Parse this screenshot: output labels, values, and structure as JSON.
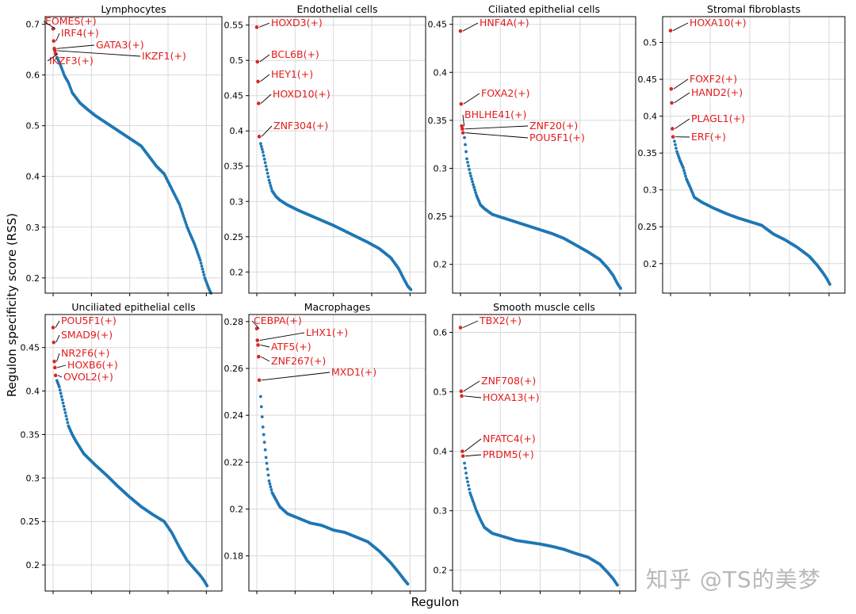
{
  "figure": {
    "xlabel": "Regulon",
    "ylabel": "Regulon specificity score (RSS)",
    "watermark": "知乎 @TS的美梦"
  },
  "colors": {
    "highlight": "#d62728",
    "points": "#1f77b4",
    "label": "#e41a1c",
    "grid": "#d9d9d9"
  },
  "chart_data": [
    {
      "type": "scatter",
      "title": "Lymphocytes",
      "ylim": [
        0.17,
        0.715
      ],
      "yticks": [
        0.2,
        0.3,
        0.4,
        0.5,
        0.6,
        0.7
      ],
      "highlights": [
        {
          "label": "EOMES(+)",
          "value": 0.691
        },
        {
          "label": "IRF4(+)",
          "value": 0.667
        },
        {
          "label": "GATA3(+)",
          "value": 0.652
        },
        {
          "label": "IKZF1(+)",
          "value": 0.648
        },
        {
          "label": "IKZF3(+)",
          "value": 0.642
        }
      ],
      "curve": [
        [
          5,
          0.635
        ],
        [
          10,
          0.618
        ],
        [
          15,
          0.598
        ],
        [
          20,
          0.585
        ],
        [
          25,
          0.565
        ],
        [
          30,
          0.555
        ],
        [
          35,
          0.545
        ],
        [
          45,
          0.532
        ],
        [
          55,
          0.52
        ],
        [
          70,
          0.505
        ],
        [
          85,
          0.49
        ],
        [
          100,
          0.475
        ],
        [
          115,
          0.46
        ],
        [
          125,
          0.44
        ],
        [
          135,
          0.42
        ],
        [
          145,
          0.405
        ],
        [
          155,
          0.375
        ],
        [
          165,
          0.345
        ],
        [
          175,
          0.3
        ],
        [
          185,
          0.265
        ],
        [
          192,
          0.235
        ],
        [
          198,
          0.2
        ],
        [
          203,
          0.18
        ],
        [
          206,
          0.17
        ]
      ]
    },
    {
      "type": "scatter",
      "title": "Endothelial cells",
      "ylim": [
        0.17,
        0.562
      ],
      "yticks": [
        0.2,
        0.25,
        0.3,
        0.35,
        0.4,
        0.45,
        0.5,
        0.55
      ],
      "highlights": [
        {
          "label": "HOXD3(+)",
          "value": 0.547
        },
        {
          "label": "BCL6B(+)",
          "value": 0.498
        },
        {
          "label": "HEY1(+)",
          "value": 0.47
        },
        {
          "label": "HOXD10(+)",
          "value": 0.439
        },
        {
          "label": "ZNF304(+)",
          "value": 0.392
        }
      ],
      "curve": [
        [
          5,
          0.382
        ],
        [
          8,
          0.37
        ],
        [
          12,
          0.35
        ],
        [
          16,
          0.33
        ],
        [
          20,
          0.315
        ],
        [
          25,
          0.307
        ],
        [
          30,
          0.302
        ],
        [
          40,
          0.295
        ],
        [
          55,
          0.287
        ],
        [
          70,
          0.28
        ],
        [
          85,
          0.273
        ],
        [
          100,
          0.266
        ],
        [
          115,
          0.258
        ],
        [
          130,
          0.25
        ],
        [
          145,
          0.242
        ],
        [
          160,
          0.233
        ],
        [
          175,
          0.22
        ],
        [
          185,
          0.205
        ],
        [
          192,
          0.19
        ],
        [
          197,
          0.18
        ],
        [
          201,
          0.175
        ]
      ]
    },
    {
      "type": "scatter",
      "title": "Ciliated epithelial cells",
      "ylim": [
        0.17,
        0.458
      ],
      "yticks": [
        0.2,
        0.25,
        0.3,
        0.35,
        0.4,
        0.45
      ],
      "highlights": [
        {
          "label": "HNF4A(+)",
          "value": 0.443
        },
        {
          "label": "FOXA2(+)",
          "value": 0.367
        },
        {
          "label": "BHLHE41(+)",
          "value": 0.344
        },
        {
          "label": "ZNF20(+)",
          "value": 0.341
        },
        {
          "label": "POU5F1(+)",
          "value": 0.337
        }
      ],
      "curve": [
        [
          5,
          0.332
        ],
        [
          8,
          0.31
        ],
        [
          12,
          0.295
        ],
        [
          16,
          0.283
        ],
        [
          20,
          0.272
        ],
        [
          25,
          0.262
        ],
        [
          30,
          0.258
        ],
        [
          40,
          0.252
        ],
        [
          55,
          0.248
        ],
        [
          70,
          0.244
        ],
        [
          85,
          0.24
        ],
        [
          100,
          0.236
        ],
        [
          115,
          0.232
        ],
        [
          130,
          0.227
        ],
        [
          145,
          0.22
        ],
        [
          160,
          0.213
        ],
        [
          175,
          0.205
        ],
        [
          185,
          0.196
        ],
        [
          192,
          0.188
        ],
        [
          197,
          0.18
        ],
        [
          201,
          0.175
        ]
      ]
    },
    {
      "type": "scatter",
      "title": "Stromal fibroblasts",
      "ylim": [
        0.16,
        0.535
      ],
      "yticks": [
        0.2,
        0.25,
        0.3,
        0.35,
        0.4,
        0.45,
        0.5
      ],
      "highlights": [
        {
          "label": "HOXA10(+)",
          "value": 0.516
        },
        {
          "label": "FOXF2(+)",
          "value": 0.437
        },
        {
          "label": "HAND2(+)",
          "value": 0.418
        },
        {
          "label": "PLAGL1(+)",
          "value": 0.383
        },
        {
          "label": "ERF(+)",
          "value": 0.372
        }
      ],
      "curve": [
        [
          5,
          0.366
        ],
        [
          8,
          0.352
        ],
        [
          12,
          0.34
        ],
        [
          16,
          0.33
        ],
        [
          20,
          0.315
        ],
        [
          25,
          0.303
        ],
        [
          30,
          0.29
        ],
        [
          40,
          0.283
        ],
        [
          55,
          0.275
        ],
        [
          70,
          0.268
        ],
        [
          85,
          0.262
        ],
        [
          100,
          0.257
        ],
        [
          115,
          0.252
        ],
        [
          130,
          0.24
        ],
        [
          145,
          0.232
        ],
        [
          160,
          0.222
        ],
        [
          175,
          0.21
        ],
        [
          185,
          0.198
        ],
        [
          192,
          0.188
        ],
        [
          197,
          0.18
        ],
        [
          201,
          0.172
        ]
      ]
    },
    {
      "type": "scatter",
      "title": "Unciliated epithelial cells",
      "ylim": [
        0.17,
        0.488
      ],
      "yticks": [
        0.2,
        0.25,
        0.3,
        0.35,
        0.4,
        0.45
      ],
      "highlights": [
        {
          "label": "POU5F1(+)",
          "value": 0.473
        },
        {
          "label": "SMAD9(+)",
          "value": 0.456
        },
        {
          "label": "NR2F6(+)",
          "value": 0.434
        },
        {
          "label": "HOXB6(+)",
          "value": 0.427
        },
        {
          "label": "OVOL2(+)",
          "value": 0.418
        }
      ],
      "curve": [
        [
          5,
          0.412
        ],
        [
          8,
          0.405
        ],
        [
          12,
          0.39
        ],
        [
          16,
          0.375
        ],
        [
          20,
          0.36
        ],
        [
          25,
          0.35
        ],
        [
          30,
          0.342
        ],
        [
          40,
          0.328
        ],
        [
          55,
          0.315
        ],
        [
          70,
          0.303
        ],
        [
          85,
          0.29
        ],
        [
          100,
          0.278
        ],
        [
          115,
          0.267
        ],
        [
          130,
          0.258
        ],
        [
          145,
          0.25
        ],
        [
          155,
          0.237
        ],
        [
          165,
          0.22
        ],
        [
          175,
          0.205
        ],
        [
          185,
          0.195
        ],
        [
          192,
          0.188
        ],
        [
          197,
          0.182
        ],
        [
          201,
          0.176
        ]
      ]
    },
    {
      "type": "scatter",
      "title": "Macrophages",
      "ylim": [
        0.165,
        0.283
      ],
      "yticks": [
        0.18,
        0.2,
        0.22,
        0.24,
        0.26,
        0.28
      ],
      "highlights": [
        {
          "label": "CEBPA(+)",
          "value": 0.277
        },
        {
          "label": "LHX1(+)",
          "value": 0.272
        },
        {
          "label": "ATF5(+)",
          "value": 0.27
        },
        {
          "label": "ZNF267(+)",
          "value": 0.265
        },
        {
          "label": "MXD1(+)",
          "value": 0.255
        }
      ],
      "curve": [
        [
          5,
          0.248
        ],
        [
          8,
          0.235
        ],
        [
          12,
          0.222
        ],
        [
          16,
          0.212
        ],
        [
          20,
          0.207
        ],
        [
          25,
          0.204
        ],
        [
          30,
          0.201
        ],
        [
          40,
          0.198
        ],
        [
          55,
          0.196
        ],
        [
          70,
          0.194
        ],
        [
          85,
          0.193
        ],
        [
          100,
          0.191
        ],
        [
          115,
          0.19
        ],
        [
          130,
          0.188
        ],
        [
          145,
          0.186
        ],
        [
          160,
          0.182
        ],
        [
          175,
          0.177
        ],
        [
          185,
          0.173
        ],
        [
          192,
          0.17
        ],
        [
          197,
          0.168
        ]
      ]
    },
    {
      "type": "scatter",
      "title": "Smooth muscle cells",
      "ylim": [
        0.165,
        0.63
      ],
      "yticks": [
        0.2,
        0.3,
        0.4,
        0.5,
        0.6
      ],
      "highlights": [
        {
          "label": "TBX2(+)",
          "value": 0.608
        },
        {
          "label": "ZNF708(+)",
          "value": 0.501
        },
        {
          "label": "HOXA13(+)",
          "value": 0.493
        },
        {
          "label": "NFATC4(+)",
          "value": 0.4
        },
        {
          "label": "PRDM5(+)",
          "value": 0.392
        }
      ],
      "curve": [
        [
          5,
          0.38
        ],
        [
          8,
          0.355
        ],
        [
          12,
          0.33
        ],
        [
          16,
          0.315
        ],
        [
          20,
          0.3
        ],
        [
          25,
          0.285
        ],
        [
          30,
          0.272
        ],
        [
          40,
          0.262
        ],
        [
          55,
          0.256
        ],
        [
          70,
          0.25
        ],
        [
          85,
          0.247
        ],
        [
          100,
          0.244
        ],
        [
          115,
          0.24
        ],
        [
          130,
          0.235
        ],
        [
          145,
          0.228
        ],
        [
          160,
          0.222
        ],
        [
          175,
          0.21
        ],
        [
          185,
          0.196
        ],
        [
          192,
          0.185
        ],
        [
          197,
          0.175
        ]
      ]
    }
  ]
}
